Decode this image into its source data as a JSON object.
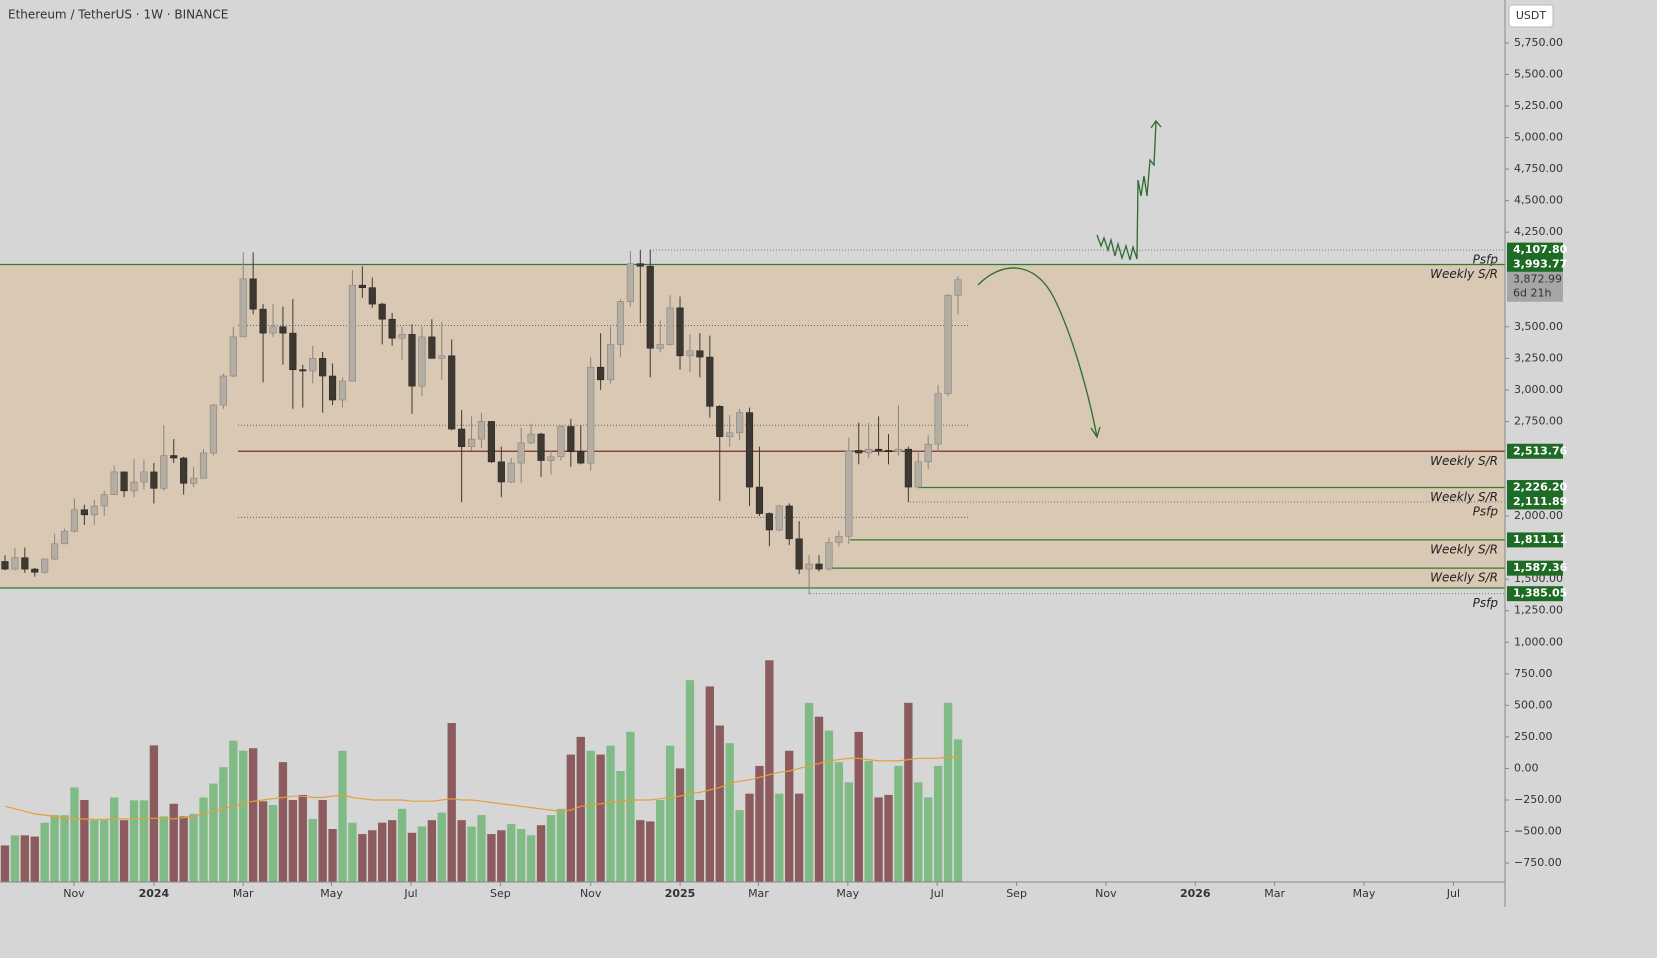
{
  "header": {
    "title": "Ethereum / TetherUS · 1W · BINANCE",
    "currency": "USDT"
  },
  "chart_data": {
    "type": "candlestick",
    "open": [
      1640,
      1580,
      1670,
      1580,
      1555,
      1660,
      1780,
      1880,
      2050,
      2010,
      2080,
      2170,
      2350,
      2200,
      2270,
      2350,
      2220,
      2480,
      2460,
      2260,
      2300,
      2500,
      2880,
      3110,
      3420,
      3880,
      3640,
      3450,
      3500,
      3450,
      3160,
      3150,
      3250,
      3110,
      2920,
      3070,
      3830,
      3810,
      3680,
      3560,
      3410,
      3440,
      3030,
      3420,
      3250,
      3270,
      2690,
      2550,
      2610,
      2750,
      2430,
      2270,
      2420,
      2580,
      2650,
      2440,
      2470,
      2710,
      2510,
      2420,
      3180,
      3080,
      3360,
      3700,
      4000,
      3980,
      3330,
      3360,
      3650,
      3270,
      3310,
      3260,
      2870,
      2630,
      2660,
      2820,
      2230,
      2020,
      1890,
      2080,
      1820,
      1580,
      1620,
      1580,
      1790,
      1840,
      2520,
      2500,
      2530,
      2520,
      2510,
      2530,
      2230,
      2430,
      2570,
      2970,
      3750
    ],
    "high": [
      1690,
      1750,
      1750,
      1590,
      1665,
      1860,
      1900,
      2140,
      2090,
      2130,
      2200,
      2400,
      2350,
      2450,
      2450,
      2420,
      2720,
      2610,
      2470,
      2390,
      2530,
      2890,
      3130,
      3500,
      4090,
      4090,
      3680,
      3680,
      3660,
      3720,
      3200,
      3350,
      3300,
      3210,
      3100,
      3950,
      3980,
      3890,
      3690,
      3610,
      3500,
      3520,
      3500,
      3560,
      3540,
      3400,
      2840,
      2790,
      2820,
      2750,
      2550,
      2460,
      2700,
      2730,
      2660,
      2520,
      2720,
      2770,
      2720,
      3260,
      3450,
      3500,
      3720,
      4100,
      4110,
      4110,
      3550,
      3750,
      3740,
      3440,
      3450,
      3430,
      2880,
      2800,
      2850,
      2860,
      2550,
      2030,
      2090,
      2100,
      1960,
      1690,
      1690,
      1830,
      1880,
      2620,
      2740,
      2740,
      2790,
      2650,
      2880,
      2550,
      2520,
      2640,
      3040,
      3760,
      3900
    ],
    "low": [
      1570,
      1570,
      1550,
      1520,
      1545,
      1650,
      1780,
      1870,
      1930,
      1930,
      2000,
      2170,
      2150,
      2150,
      2210,
      2100,
      2200,
      2420,
      2170,
      2230,
      2300,
      2480,
      2850,
      3100,
      3420,
      3600,
      3060,
      3420,
      3200,
      2850,
      2860,
      3050,
      2820,
      2880,
      2860,
      3070,
      3730,
      3650,
      3360,
      3350,
      3240,
      2810,
      2950,
      3250,
      3080,
      2680,
      2110,
      2520,
      2540,
      2420,
      2150,
      2260,
      2260,
      2570,
      2310,
      2330,
      2440,
      2390,
      2410,
      2360,
      3000,
      3050,
      3260,
      3660,
      3530,
      3100,
      3300,
      3350,
      3160,
      3140,
      3100,
      2780,
      2120,
      2550,
      2600,
      2080,
      2000,
      1760,
      1880,
      1770,
      1540,
      1380,
      1560,
      1570,
      1760,
      1780,
      2410,
      2460,
      2480,
      2410,
      2480,
      2110,
      2220,
      2370,
      2510,
      2950,
      3600
    ],
    "close": [
      1580,
      1670,
      1580,
      1555,
      1660,
      1780,
      1880,
      2050,
      2010,
      2080,
      2170,
      2350,
      2200,
      2270,
      2350,
      2220,
      2480,
      2460,
      2260,
      2300,
      2500,
      2880,
      3110,
      3420,
      3880,
      3640,
      3450,
      3500,
      3450,
      3160,
      3150,
      3250,
      3110,
      2920,
      3070,
      3830,
      3810,
      3680,
      3560,
      3410,
      3440,
      3030,
      3420,
      3250,
      3270,
      2690,
      2550,
      2610,
      2750,
      2430,
      2270,
      2420,
      2580,
      2650,
      2440,
      2470,
      2710,
      2510,
      2420,
      3180,
      3080,
      3360,
      3700,
      4000,
      3980,
      3330,
      3360,
      3650,
      3270,
      3310,
      3260,
      2870,
      2630,
      2660,
      2820,
      2230,
      2020,
      1890,
      2080,
      1820,
      1580,
      1620,
      1580,
      1790,
      1840,
      2520,
      2500,
      2530,
      2520,
      2510,
      2530,
      2230,
      2430,
      2570,
      2970,
      3750,
      3872.99
    ],
    "volume": [
      -610,
      -530,
      -530,
      -540,
      -430,
      -370,
      -370,
      -150,
      -250,
      -410,
      -410,
      -230,
      -410,
      -253,
      -253,
      183,
      -380,
      -280,
      -380,
      -360,
      -230,
      -120,
      10,
      220,
      140,
      160,
      -260,
      -290,
      50,
      -250,
      -210,
      -400,
      -250,
      -480,
      140,
      -430,
      -520,
      -490,
      -430,
      -410,
      -320,
      -510,
      -460,
      -410,
      -350,
      360,
      -410,
      -460,
      -370,
      -520,
      -490,
      -440,
      -480,
      -530,
      -450,
      -370,
      -320,
      110,
      250,
      140,
      110,
      180,
      -20,
      290,
      -410,
      -420,
      -250,
      180,
      0,
      700,
      -250,
      650,
      340,
      200,
      -330,
      -200,
      20,
      857,
      -200,
      140,
      -200,
      520,
      410,
      300,
      50,
      -110,
      290,
      60,
      -230,
      -210,
      20,
      520,
      -110,
      -230,
      20,
      520,
      230
    ],
    "volume_ma": [
      -300,
      -320,
      -340,
      -360,
      -370,
      -380,
      -390,
      -400,
      -400,
      -405,
      -405,
      -400,
      -400,
      -400,
      -400,
      -395,
      -395,
      -400,
      -390,
      -380,
      -360,
      -340,
      -320,
      -300,
      -280,
      -260,
      -250,
      -240,
      -230,
      -220,
      -220,
      -230,
      -230,
      -220,
      -210,
      -230,
      -240,
      -250,
      -250,
      -250,
      -250,
      -260,
      -260,
      -260,
      -250,
      -240,
      -250,
      -250,
      -260,
      -270,
      -280,
      -290,
      -300,
      -310,
      -320,
      -330,
      -340,
      -330,
      -300,
      -290,
      -280,
      -270,
      -260,
      -250,
      -250,
      -250,
      -240,
      -230,
      -220,
      -200,
      -190,
      -170,
      -150,
      -120,
      -100,
      -90,
      -70,
      -50,
      -30,
      -20,
      0,
      20,
      40,
      60,
      70,
      80,
      80,
      70,
      60,
      60,
      60,
      70,
      80,
      80,
      80,
      90,
      90
    ],
    "up_color": "#b4ada4",
    "down_color": "#3e3833",
    "volume_up_color": "#80bb86",
    "volume_down_color": "#8b5b5d",
    "volume_ma_color": "#e5a03a",
    "xlim": [
      -0.5,
      151.1
    ],
    "xticks": [
      {
        "value": 6.95,
        "label": "Nov"
      },
      {
        "value": 15,
        "label": "2024"
      },
      {
        "value": 24,
        "label": "Mar"
      },
      {
        "value": 32.9,
        "label": "May"
      },
      {
        "value": 40.9,
        "label": "Jul"
      },
      {
        "value": 49.9,
        "label": "Sep"
      },
      {
        "value": 59,
        "label": "Nov"
      },
      {
        "value": 68,
        "label": "2025"
      },
      {
        "value": 75.9,
        "label": "Mar"
      },
      {
        "value": 84.9,
        "label": "May"
      },
      {
        "value": 93.9,
        "label": "Jul"
      },
      {
        "value": 101.9,
        "label": "Sep"
      },
      {
        "value": 110.9,
        "label": "Nov"
      },
      {
        "value": 119.9,
        "label": "2026"
      },
      {
        "value": 127.9,
        "label": "Mar"
      },
      {
        "value": 136.9,
        "label": "May"
      },
      {
        "value": 145.9,
        "label": "Jul"
      }
    ],
    "ylim": [
      -900,
      6090
    ],
    "yticks": [
      {
        "value": 5750,
        "label": "5,750.00"
      },
      {
        "value": 5500,
        "label": "5,500.00"
      },
      {
        "value": 5250,
        "label": "5,250.00"
      },
      {
        "value": 5000,
        "label": "5,000.00"
      },
      {
        "value": 4750,
        "label": "4,750.00"
      },
      {
        "value": 4500,
        "label": "4,500.00"
      },
      {
        "value": 4250,
        "label": "4,250.00"
      },
      {
        "value": 3500,
        "label": "3,500.00"
      },
      {
        "value": 3250,
        "label": "3,250.00"
      },
      {
        "value": 3000,
        "label": "3,000.00"
      },
      {
        "value": 2750,
        "label": "2,750.00"
      },
      {
        "value": 2000,
        "label": "2,000.00"
      },
      {
        "value": 1500,
        "label": "1,500.00"
      },
      {
        "value": 1250,
        "label": "1,250.00"
      },
      {
        "value": 1000,
        "label": "1,000.00"
      },
      {
        "value": 750,
        "label": "750.00"
      },
      {
        "value": 500,
        "label": "500.00"
      },
      {
        "value": 250,
        "label": "250.00"
      },
      {
        "value": 0,
        "label": "0.00"
      },
      {
        "value": -250,
        "label": "−250.00"
      },
      {
        "value": -500,
        "label": "−500.00"
      },
      {
        "value": -750,
        "label": "−750.00"
      }
    ],
    "range": [
      1430,
      3993.77
    ],
    "dotted_lines": [
      3510,
      2720,
      1990
    ],
    "levels": [
      {
        "value": 4107.8,
        "label": "4,107.80",
        "name": "Psfp",
        "style": "dotted",
        "color": "#777777"
      },
      {
        "value": 3993.77,
        "label": "3,993.77",
        "name": "Weekly S/R",
        "style": "solid",
        "color": "#2e7d32"
      },
      {
        "value": 2513.76,
        "label": "2,513.76",
        "name": "Weekly S/R",
        "style": "solid",
        "color": "#7b2d2d"
      },
      {
        "value": 2226.2,
        "label": "2,226.20",
        "name": "Weekly S/R",
        "style": "solid",
        "color": "#2e7d32"
      },
      {
        "value": 2111.89,
        "label": "2,111.89",
        "name": "Psfp",
        "style": "dotted",
        "color": "#777777"
      },
      {
        "value": 1811.11,
        "label": "1,811.11",
        "name": "Weekly S/R",
        "style": "solid",
        "color": "#2e7d32"
      },
      {
        "value": 1587.36,
        "label": "1,587.36",
        "name": "Weekly S/R",
        "style": "solid",
        "color": "#2e7d32"
      },
      {
        "value": 1385.05,
        "label": "1,385.05",
        "name": "Psfp",
        "style": "dotted",
        "color": "#777777"
      }
    ],
    "current": {
      "value": 3872.99,
      "label": "3,872.99",
      "countdown": "6d 21h"
    }
  }
}
